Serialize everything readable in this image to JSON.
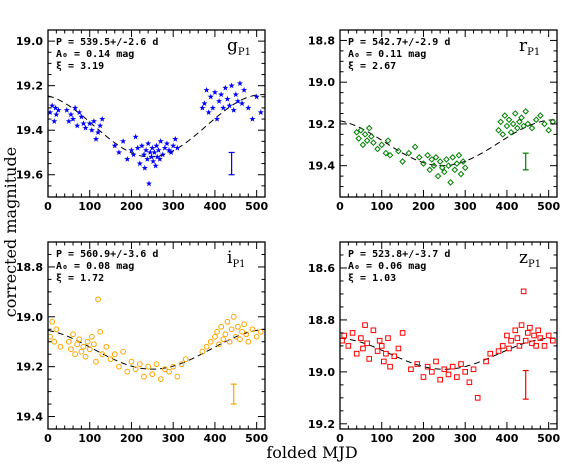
{
  "figure": {
    "xlabel": "folded MJD",
    "ylabel": "corrected magnitude"
  },
  "chart_data": [
    {
      "type": "scatter",
      "panel": "top-left",
      "band": "g",
      "band_sub": "P1",
      "info": [
        "P = 539.5+/-2.6 d",
        "A₀ = 0.14 mag",
        "ξ = 3.19"
      ],
      "color": "#0000ff",
      "marker": "star",
      "xlim": [
        0,
        520
      ],
      "ylim": [
        19.7,
        18.95
      ],
      "xticks": [
        0,
        100,
        200,
        300,
        400,
        500
      ],
      "yticks": [
        19.0,
        19.2,
        19.4,
        19.6
      ],
      "ytick_labels": [
        "19.0",
        "19.2",
        "19.4",
        "19.6"
      ],
      "model": {
        "period": 539.5,
        "mean": 19.38,
        "amplitude": 0.14,
        "phase_min": 245
      },
      "errorbar": {
        "x": 440,
        "y": 19.55,
        "half": 0.05
      },
      "x": [
        5,
        10,
        15,
        18,
        20,
        25,
        45,
        50,
        55,
        60,
        65,
        70,
        75,
        80,
        85,
        90,
        100,
        105,
        110,
        115,
        120,
        125,
        130,
        160,
        170,
        180,
        190,
        200,
        205,
        210,
        215,
        220,
        225,
        230,
        232,
        235,
        238,
        240,
        242,
        245,
        248,
        250,
        252,
        255,
        258,
        260,
        262,
        265,
        268,
        270,
        275,
        280,
        285,
        290,
        295,
        300,
        305,
        310,
        370,
        375,
        380,
        385,
        390,
        395,
        400,
        405,
        410,
        415,
        420,
        425,
        430,
        435,
        440,
        445,
        450,
        455,
        460,
        465,
        470,
        480,
        490,
        500,
        510
      ],
      "y": [
        19.32,
        19.29,
        19.36,
        19.3,
        19.33,
        19.31,
        19.31,
        19.36,
        19.33,
        19.35,
        19.3,
        19.38,
        19.32,
        19.34,
        19.37,
        19.39,
        19.37,
        19.4,
        19.36,
        19.44,
        19.41,
        19.38,
        19.35,
        19.47,
        19.5,
        19.45,
        19.53,
        19.49,
        19.51,
        19.43,
        19.48,
        19.55,
        19.47,
        19.51,
        19.57,
        19.49,
        19.53,
        19.46,
        19.64,
        19.5,
        19.52,
        19.48,
        19.54,
        19.5,
        19.56,
        19.47,
        19.52,
        19.49,
        19.53,
        19.45,
        19.51,
        19.48,
        19.46,
        19.49,
        19.5,
        19.47,
        19.44,
        19.48,
        19.3,
        19.28,
        19.22,
        19.32,
        19.25,
        19.3,
        19.23,
        19.35,
        19.27,
        19.24,
        19.3,
        19.21,
        19.26,
        19.29,
        19.2,
        19.31,
        19.24,
        19.27,
        19.19,
        19.28,
        19.22,
        19.3,
        19.35,
        19.25,
        19.32
      ]
    },
    {
      "type": "scatter",
      "panel": "top-right",
      "band": "r",
      "band_sub": "P1",
      "info": [
        "P = 542.7+/-2.9 d",
        "A₀ = 0.11 mag",
        "ξ = 2.67"
      ],
      "color": "#008000",
      "marker": "diamond",
      "xlim": [
        0,
        520
      ],
      "ylim": [
        19.55,
        18.75
      ],
      "xticks": [
        0,
        100,
        200,
        300,
        400,
        500
      ],
      "yticks": [
        18.8,
        19.0,
        19.2,
        19.4
      ],
      "ytick_labels": [
        "18.8",
        "19.0",
        "19.2",
        "19.4"
      ],
      "model": {
        "period": 542.7,
        "mean": 19.29,
        "amplitude": 0.11,
        "phase_min": 245
      },
      "errorbar": {
        "x": 445,
        "y": 19.38,
        "half": 0.04
      },
      "x": [
        40,
        45,
        50,
        55,
        60,
        65,
        70,
        75,
        80,
        90,
        100,
        110,
        115,
        120,
        140,
        150,
        165,
        180,
        190,
        200,
        210,
        215,
        220,
        225,
        230,
        235,
        240,
        245,
        250,
        255,
        260,
        265,
        270,
        275,
        280,
        285,
        290,
        295,
        300,
        380,
        385,
        390,
        395,
        400,
        405,
        410,
        415,
        420,
        425,
        430,
        435,
        440,
        445,
        450,
        460,
        470,
        480,
        490,
        500,
        510
      ],
      "y": [
        19.24,
        19.27,
        19.23,
        19.3,
        19.25,
        19.28,
        19.22,
        19.26,
        19.29,
        19.32,
        19.3,
        19.34,
        19.28,
        19.35,
        19.33,
        19.38,
        19.34,
        19.31,
        19.36,
        19.39,
        19.35,
        19.42,
        19.37,
        19.4,
        19.36,
        19.45,
        19.38,
        19.41,
        19.43,
        19.37,
        19.4,
        19.48,
        19.36,
        19.42,
        19.39,
        19.35,
        19.44,
        19.38,
        19.41,
        19.23,
        19.19,
        19.25,
        19.16,
        19.21,
        19.18,
        19.24,
        19.2,
        19.15,
        19.22,
        19.19,
        19.17,
        19.21,
        19.14,
        19.2,
        19.22,
        19.18,
        19.16,
        19.2,
        19.23,
        19.19
      ]
    },
    {
      "type": "scatter",
      "panel": "bottom-left",
      "band": "i",
      "band_sub": "P1",
      "info": [
        "P = 560.9+/-3.6 d",
        "A₀ = 0.08 mag",
        "ξ = 1.72"
      ],
      "color": "#ffa500",
      "marker": "circle",
      "xlim": [
        0,
        520
      ],
      "ylim": [
        19.45,
        18.7
      ],
      "xticks": [
        0,
        100,
        200,
        300,
        400,
        500
      ],
      "yticks": [
        18.8,
        19.0,
        19.2,
        19.4
      ],
      "ytick_labels": [
        "18.8",
        "19.0",
        "19.2",
        "19.4"
      ],
      "model": {
        "period": 560.9,
        "mean": 19.13,
        "amplitude": 0.08,
        "phase_min": 250
      },
      "errorbar": {
        "x": 445,
        "y": 19.31,
        "half": 0.04
      },
      "x": [
        5,
        10,
        15,
        20,
        30,
        50,
        55,
        60,
        65,
        70,
        75,
        80,
        85,
        90,
        95,
        100,
        105,
        110,
        115,
        120,
        125,
        130,
        140,
        150,
        160,
        170,
        180,
        190,
        200,
        210,
        220,
        230,
        240,
        250,
        260,
        270,
        280,
        290,
        300,
        310,
        320,
        330,
        370,
        380,
        390,
        400,
        405,
        410,
        415,
        420,
        425,
        430,
        435,
        440,
        445,
        450,
        455,
        460,
        465,
        470,
        475,
        480,
        490,
        500,
        510
      ],
      "y": [
        19.08,
        19.02,
        19.1,
        19.05,
        19.12,
        19.1,
        19.13,
        19.07,
        19.15,
        19.11,
        19.09,
        19.14,
        19.12,
        19.16,
        19.1,
        19.13,
        19.08,
        19.11,
        19.18,
        18.93,
        19.06,
        19.15,
        19.12,
        19.17,
        19.15,
        19.2,
        19.14,
        19.22,
        19.18,
        19.21,
        19.19,
        19.24,
        19.2,
        19.23,
        19.19,
        19.25,
        19.21,
        19.22,
        19.2,
        19.24,
        19.19,
        19.17,
        19.14,
        19.12,
        19.1,
        19.08,
        19.06,
        19.11,
        19.04,
        19.09,
        19.07,
        19.02,
        19.1,
        19.05,
        19.0,
        19.08,
        19.04,
        19.09,
        19.06,
        19.03,
        19.07,
        19.1,
        19.05,
        19.08,
        19.06
      ]
    },
    {
      "type": "scatter",
      "panel": "bottom-right",
      "band": "z",
      "band_sub": "P1",
      "info": [
        "P = 523.8+/-3.7 d",
        "A₀ = 0.06 mag",
        "ξ = 1.03"
      ],
      "color": "#ff0000",
      "marker": "square",
      "xlim": [
        0,
        520
      ],
      "ylim": [
        19.22,
        18.5
      ],
      "xticks": [
        0,
        100,
        200,
        300,
        400,
        500
      ],
      "yticks": [
        18.6,
        18.8,
        19.0,
        19.2
      ],
      "ytick_labels": [
        "18.6",
        "18.8",
        "19.0",
        "19.2"
      ],
      "model": {
        "period": 523.8,
        "mean": 18.93,
        "amplitude": 0.06,
        "phase_min": 250
      },
      "errorbar": {
        "x": 445,
        "y": 19.05,
        "half": 0.055
      },
      "x": [
        5,
        10,
        20,
        30,
        40,
        50,
        55,
        60,
        65,
        70,
        80,
        90,
        95,
        100,
        105,
        110,
        115,
        120,
        130,
        140,
        150,
        170,
        185,
        200,
        210,
        220,
        230,
        240,
        250,
        260,
        270,
        280,
        290,
        300,
        310,
        320,
        330,
        350,
        360,
        380,
        390,
        400,
        405,
        410,
        420,
        425,
        430,
        435,
        440,
        445,
        450,
        455,
        460,
        465,
        470,
        475,
        480,
        490,
        500,
        510
      ],
      "y": [
        18.88,
        18.86,
        18.9,
        18.85,
        18.93,
        18.87,
        18.91,
        18.82,
        18.89,
        18.95,
        18.84,
        18.92,
        18.88,
        18.9,
        18.96,
        18.93,
        18.87,
        18.98,
        18.94,
        18.91,
        18.85,
        18.99,
        18.97,
        19.02,
        18.98,
        19.0,
        18.96,
        19.03,
        18.99,
        19.01,
        18.98,
        19.02,
        18.97,
        19.0,
        19.04,
        18.99,
        19.1,
        18.96,
        18.93,
        18.92,
        18.9,
        18.86,
        18.91,
        18.88,
        18.84,
        18.87,
        18.9,
        18.82,
        18.69,
        18.88,
        18.85,
        18.83,
        18.89,
        18.86,
        18.9,
        18.84,
        18.87,
        18.9,
        18.86,
        18.88
      ]
    }
  ]
}
